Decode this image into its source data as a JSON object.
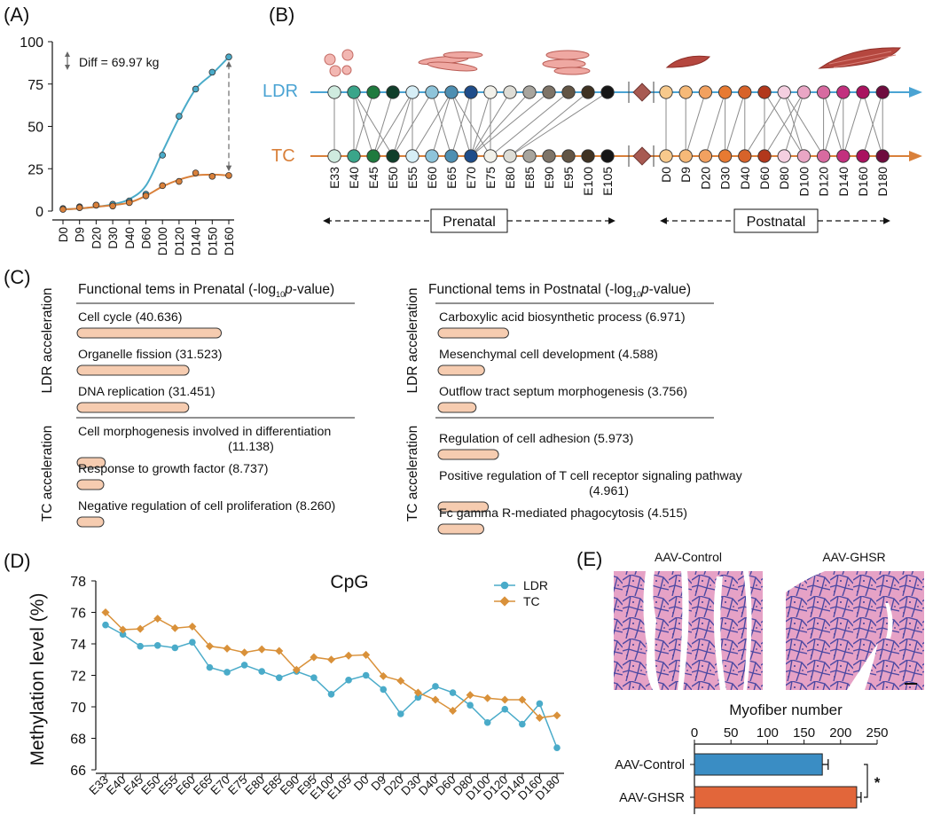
{
  "panels": {
    "A": "(A)",
    "B": "(B)",
    "C": "(C)",
    "D": "(D)",
    "E": "(E)"
  },
  "chart_data": [
    {
      "panel": "A",
      "type": "line",
      "annotation": "Diff = 69.97 kg",
      "categories": [
        "D0",
        "D9",
        "D20",
        "D30",
        "D40",
        "D60",
        "D100",
        "D120",
        "D140",
        "D150",
        "D160"
      ],
      "ylim": [
        0,
        100
      ],
      "yticks": [
        0,
        25,
        50,
        75,
        100
      ],
      "colors": {
        "blue": "#4AABC9",
        "orange": "#D9803A"
      },
      "series": [
        {
          "color": "#4AABC9",
          "points": [
            1.5,
            2.5,
            3.5,
            4,
            6,
            10,
            33,
            56,
            72,
            82,
            91
          ],
          "curve": [
            1,
            1.5,
            2.5,
            4,
            7,
            15,
            35,
            55,
            72,
            81,
            91
          ]
        },
        {
          "color": "#D9803A",
          "points": [
            1,
            2,
            3.5,
            3,
            5,
            9,
            15,
            17.5,
            22.5,
            20.5,
            21
          ],
          "curve": [
            1,
            1.5,
            2.5,
            3.5,
            5,
            9,
            14.5,
            18.5,
            21,
            21.5,
            21
          ]
        }
      ]
    },
    {
      "panel": "D",
      "type": "line",
      "title": "CpG",
      "ylabel": "Methylation level (%)",
      "ylim": [
        66,
        78
      ],
      "yticks": [
        66,
        68,
        70,
        72,
        74,
        76,
        78
      ],
      "legend_position": "top-right",
      "categories": [
        "E33",
        "E40",
        "E45",
        "E50",
        "E55",
        "E60",
        "E65",
        "E70",
        "E75",
        "E80",
        "E85",
        "E90",
        "E95",
        "E100",
        "E105",
        "D0",
        "D9",
        "D20",
        "D30",
        "D40",
        "D60",
        "D80",
        "D100",
        "D120",
        "D140",
        "D160",
        "D180"
      ],
      "series": [
        {
          "name": "LDR",
          "color": "#4AABC9",
          "marker": "circle",
          "values": [
            75.2,
            74.6,
            73.85,
            73.9,
            73.75,
            74.1,
            72.5,
            72.2,
            72.65,
            72.25,
            71.85,
            72.25,
            71.85,
            70.8,
            71.7,
            72.0,
            71.1,
            69.55,
            70.6,
            71.3,
            70.9,
            70.1,
            69.0,
            69.85,
            68.9,
            70.2,
            67.4
          ]
        },
        {
          "name": "TC",
          "color": "#D9913A",
          "marker": "diamond",
          "values": [
            76.0,
            74.9,
            74.95,
            75.6,
            75.0,
            75.1,
            73.85,
            73.7,
            73.45,
            73.65,
            73.55,
            72.35,
            73.15,
            73.0,
            73.25,
            73.3,
            71.95,
            71.65,
            70.9,
            70.45,
            69.75,
            70.75,
            70.55,
            70.45,
            70.45,
            69.3,
            69.45
          ]
        }
      ]
    },
    {
      "panel": "E",
      "type": "bar",
      "orientation": "horizontal",
      "title": "Myofiber number",
      "categories": [
        "AAV-Control",
        "AAV-GHSR"
      ],
      "values": [
        175,
        222
      ],
      "errors": [
        8,
        6
      ],
      "colors": [
        "#3A8DC4",
        "#E2663A"
      ],
      "xlim": [
        0,
        250
      ],
      "xticks": [
        0,
        50,
        100,
        150,
        200,
        250
      ],
      "significance": "*"
    }
  ],
  "panelB": {
    "ldr_label": "LDR",
    "tc_label": "TC",
    "prenatal_label": "Prenatal",
    "postnatal_label": "Postnatal",
    "line_colors": {
      "ldr": "#4AA3D3",
      "tc": "#D9803A"
    },
    "prenatal": [
      {
        "label": "E33",
        "color": "#CFEBDF"
      },
      {
        "label": "E40",
        "color": "#3AA58A"
      },
      {
        "label": "E45",
        "color": "#1F7A3E"
      },
      {
        "label": "E50",
        "color": "#103E2A"
      },
      {
        "label": "E55",
        "color": "#D6EEF6"
      },
      {
        "label": "E60",
        "color": "#8EC4DA"
      },
      {
        "label": "E65",
        "color": "#4E8FB2"
      },
      {
        "label": "E70",
        "color": "#1F4D8A"
      },
      {
        "label": "E75",
        "color": "#F2F1EA"
      },
      {
        "label": "E80",
        "color": "#DEDDD6"
      },
      {
        "label": "E85",
        "color": "#A8A59E"
      },
      {
        "label": "E90",
        "color": "#7E7468"
      },
      {
        "label": "E95",
        "color": "#625545"
      },
      {
        "label": "E100",
        "color": "#3F3222"
      },
      {
        "label": "E105",
        "color": "#151515"
      }
    ],
    "postnatal": [
      {
        "label": "D0",
        "color": "#F7C98C"
      },
      {
        "label": "D9",
        "color": "#F6B978"
      },
      {
        "label": "D20",
        "color": "#F2A160"
      },
      {
        "label": "D30",
        "color": "#E77A32"
      },
      {
        "label": "D40",
        "color": "#D7632A"
      },
      {
        "label": "D60",
        "color": "#B2381C"
      },
      {
        "label": "D80",
        "color": "#F4CFE0"
      },
      {
        "label": "D100",
        "color": "#E9A6C5"
      },
      {
        "label": "D120",
        "color": "#D76AA0"
      },
      {
        "label": "D140",
        "color": "#C2307E"
      },
      {
        "label": "D160",
        "color": "#A9125F"
      },
      {
        "label": "D180",
        "color": "#6E0C3E"
      }
    ],
    "pre_links": [
      [
        0,
        0
      ],
      [
        1,
        1
      ],
      [
        1,
        2
      ],
      [
        1,
        3
      ],
      [
        2,
        1
      ],
      [
        3,
        2
      ],
      [
        4,
        2
      ],
      [
        4,
        3
      ],
      [
        4,
        4
      ],
      [
        5,
        3
      ],
      [
        5,
        6
      ],
      [
        6,
        4
      ],
      [
        6,
        5
      ],
      [
        6,
        7
      ],
      [
        6,
        8
      ],
      [
        7,
        6
      ],
      [
        7,
        7
      ],
      [
        8,
        7
      ],
      [
        8,
        8
      ],
      [
        9,
        7
      ],
      [
        10,
        7
      ],
      [
        11,
        7
      ],
      [
        12,
        8
      ],
      [
        13,
        9
      ],
      [
        14,
        9
      ]
    ],
    "post_links": [
      [
        0,
        0
      ],
      [
        1,
        1
      ],
      [
        2,
        1
      ],
      [
        3,
        2
      ],
      [
        3,
        3
      ],
      [
        4,
        3
      ],
      [
        4,
        4
      ],
      [
        5,
        5
      ],
      [
        5,
        7
      ],
      [
        6,
        4
      ],
      [
        6,
        7
      ],
      [
        6,
        8
      ],
      [
        7,
        5
      ],
      [
        7,
        6
      ],
      [
        8,
        8
      ],
      [
        8,
        9
      ],
      [
        9,
        8
      ],
      [
        9,
        9
      ],
      [
        10,
        9
      ],
      [
        10,
        11
      ],
      [
        11,
        10
      ],
      [
        11,
        11
      ]
    ]
  },
  "panelC": {
    "prenatal_header": "Functional tems in Prenatal (-log",
    "postnatal_header": "Functional tems in Postnatal (-log",
    "header_sub": "10",
    "header_p": "p",
    "header_tail": "-value)",
    "row_ldr": "LDR acceleration",
    "row_tc": "TC acceleration",
    "bar_color": "#F6CCB0",
    "prenatal_ldr": [
      {
        "lines": [
          "Cell cycle (40.636)"
        ],
        "value": 40.636
      },
      {
        "lines": [
          "Organelle fission (31.523)"
        ],
        "value": 31.523
      },
      {
        "lines": [
          "DNA replication (31.451)"
        ],
        "value": 31.451
      }
    ],
    "prenatal_tc": [
      {
        "lines": [
          "Cell morphogenesis involved in differentiation",
          "(11.138)"
        ],
        "value": 11.138
      },
      {
        "lines": [
          "Response to growth factor (8.737)"
        ],
        "value": 8.737
      },
      {
        "lines": [
          "Negative regulation of cell proliferation (8.260)"
        ],
        "value": 8.26
      }
    ],
    "postnatal_ldr": [
      {
        "lines": [
          "Carboxylic acid biosynthetic process  (6.971)"
        ],
        "value": 6.971
      },
      {
        "lines": [
          "Mesenchymal cell development (4.588)"
        ],
        "value": 4.588
      },
      {
        "lines": [
          "Outflow tract septum morphogenesis (3.756)"
        ],
        "value": 3.756
      }
    ],
    "postnatal_tc": [
      {
        "lines": [
          "Regulation of cell adhesion (5.973)"
        ],
        "value": 5.973
      },
      {
        "lines": [
          "Positive regulation of T cell receptor signaling pathway",
          "(4.961)"
        ],
        "value": 4.961
      },
      {
        "lines": [
          "Fc gamma R-mediated phagocytosis (4.515)"
        ],
        "value": 4.515
      }
    ]
  },
  "panelE": {
    "img_control_label": "AAV-Control",
    "img_ghsr_label": "AAV-GHSR",
    "tissue_colors": {
      "bg": "#E9A9C9",
      "border": "#5A4FA8"
    }
  }
}
